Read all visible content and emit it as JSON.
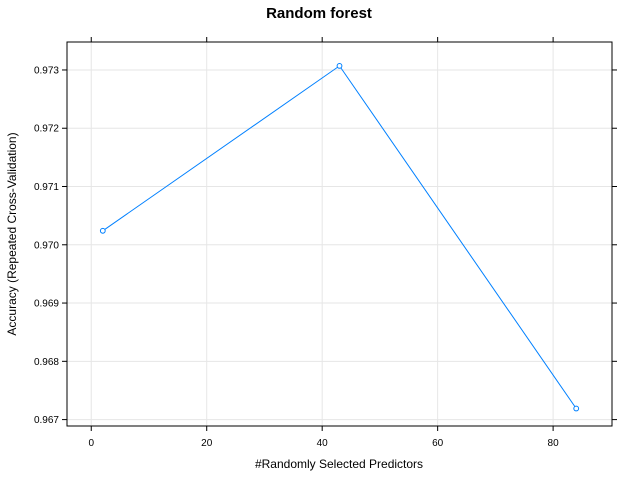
{
  "chart_data": {
    "type": "line",
    "title": "Random forest",
    "xlabel": "#Randomly Selected Predictors",
    "ylabel": "Accuracy (Repeated Cross-Validation)",
    "x_ticks": [
      0,
      20,
      40,
      60,
      80
    ],
    "y_ticks": [
      0.967,
      0.968,
      0.969,
      0.97,
      0.971,
      0.972,
      0.973
    ],
    "x_tick_labels": [
      "0",
      "20",
      "40",
      "60",
      "80"
    ],
    "y_tick_labels": [
      "0.967",
      "0.968",
      "0.969",
      "0.970",
      "0.971",
      "0.972",
      "0.973"
    ],
    "xlim": [
      -4.2,
      90.2
    ],
    "ylim": [
      0.96689,
      0.97348
    ],
    "grid": true,
    "series": [
      {
        "x": [
          2,
          43,
          84
        ],
        "y": [
          0.97024,
          0.97307,
          0.96719
        ],
        "color": "#0080ff"
      }
    ]
  }
}
